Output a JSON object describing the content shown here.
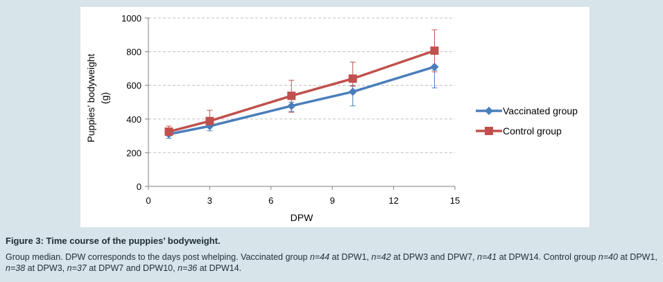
{
  "chart_data": {
    "type": "line",
    "xlabel": "DPW",
    "ylabel_line1": "Puppies’ bodyweight",
    "ylabel_line2": "(g)",
    "xlim": [
      0,
      15
    ],
    "ylim": [
      0,
      1000
    ],
    "xticks": [
      0,
      3,
      6,
      9,
      12,
      15
    ],
    "yticks": [
      0,
      200,
      400,
      600,
      800,
      1000
    ],
    "grid": "horizontal-dashed",
    "legend": "right",
    "series": [
      {
        "name": "Vaccinated group",
        "color": "#4a7ebb",
        "marker": "diamond",
        "x": [
          1,
          3,
          7,
          10,
          14
        ],
        "y": [
          310,
          358,
          478,
          562,
          710
        ],
        "err_low": [
          285,
          330,
          445,
          478,
          585
        ],
        "err_high": [
          335,
          380,
          500,
          600,
          690
        ]
      },
      {
        "name": "Control group",
        "color": "#c0504d",
        "marker": "square",
        "x": [
          1,
          3,
          7,
          10,
          14
        ],
        "y": [
          325,
          388,
          538,
          640,
          806
        ],
        "err_low": [
          305,
          370,
          440,
          595,
          680
        ],
        "err_high": [
          358,
          452,
          630,
          738,
          930
        ]
      }
    ]
  },
  "caption": {
    "title": "Figure 3: Time course of the puppies’ bodyweight.",
    "body_parts": [
      {
        "t": "Group median. DPW corresponds to the days post whelping. Vaccinated group ",
        "i": false
      },
      {
        "t": "n=44",
        "i": true
      },
      {
        "t": " at DPW1, ",
        "i": false
      },
      {
        "t": "n=42",
        "i": true
      },
      {
        "t": " at DPW3 and DPW7, ",
        "i": false
      },
      {
        "t": "n=41",
        "i": true
      },
      {
        "t": " at DPW14. Control group ",
        "i": false
      },
      {
        "t": "n=40",
        "i": true
      },
      {
        "t": " at DPW1, ",
        "i": false
      },
      {
        "t": "n=38",
        "i": true
      },
      {
        "t": " at DPW3, ",
        "i": false
      },
      {
        "t": "n=37",
        "i": true
      },
      {
        "t": " at DPW7 and DPW10, ",
        "i": false
      },
      {
        "t": "n=36",
        "i": true
      },
      {
        "t": " at DPW14.",
        "i": false
      }
    ]
  }
}
